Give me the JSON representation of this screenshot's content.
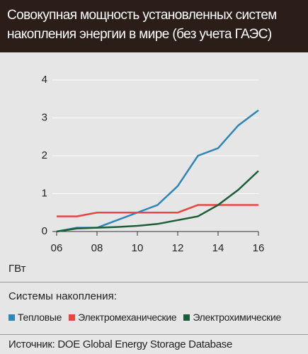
{
  "chart_data": {
    "type": "line",
    "title": "Совокупная мощность установленных систем накопления энергии в мире (без учета ГАЭС)",
    "y_label": "ГВт",
    "legend_title": "Системы накопления:",
    "source": "Источник: DOE Global Energy Storage Database",
    "x": [
      6,
      7,
      8,
      9,
      10,
      11,
      12,
      13,
      14,
      15,
      16
    ],
    "xlim": [
      6,
      16
    ],
    "xticks": [
      {
        "value": 6,
        "label": "06"
      },
      {
        "value": 8,
        "label": "08"
      },
      {
        "value": 10,
        "label": "10"
      },
      {
        "value": 12,
        "label": "12"
      },
      {
        "value": 14,
        "label": "14"
      },
      {
        "value": 16,
        "label": "16"
      }
    ],
    "ylim": [
      0,
      4
    ],
    "yticks": [
      0,
      1,
      2,
      3,
      4
    ],
    "grid": true,
    "series": [
      {
        "name": "Тепловые",
        "color": "#2e86b8",
        "values": [
          0,
          0.1,
          0.1,
          0.3,
          0.5,
          0.7,
          1.2,
          2.0,
          2.2,
          2.8,
          3.2
        ]
      },
      {
        "name": "Электромеханические",
        "color": "#e8463f",
        "values": [
          0.4,
          0.4,
          0.5,
          0.5,
          0.5,
          0.5,
          0.5,
          0.7,
          0.7,
          0.7,
          0.7
        ]
      },
      {
        "name": "Электрохимические",
        "color": "#1d5e3a",
        "values": [
          0,
          0.08,
          0.1,
          0.12,
          0.15,
          0.2,
          0.3,
          0.4,
          0.7,
          1.1,
          1.6
        ]
      }
    ]
  }
}
